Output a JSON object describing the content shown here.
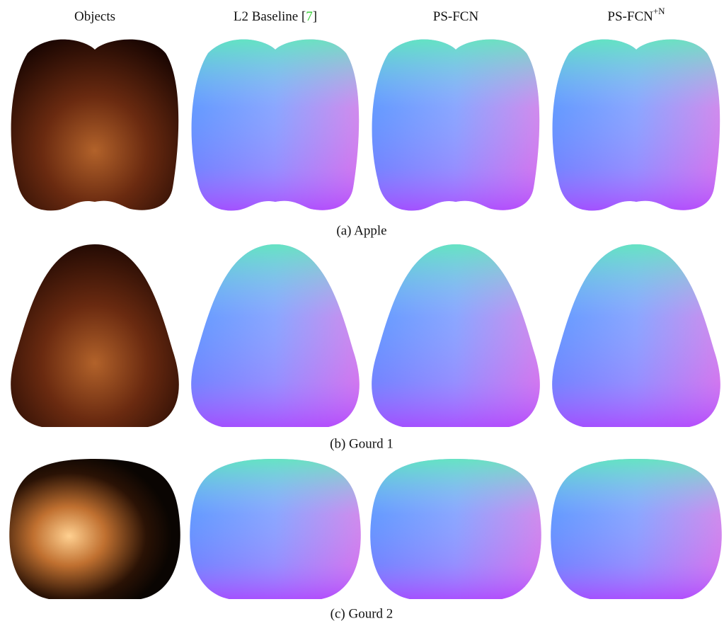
{
  "figure": {
    "headers": [
      {
        "text": "Objects"
      },
      {
        "text": "L2 Baseline [",
        "citation": "7",
        "after": "]"
      },
      {
        "text": "PS-FCN"
      },
      {
        "text": "PS-FCN",
        "superscript": "+N"
      }
    ],
    "rows": [
      {
        "caption": "(a) Apple"
      },
      {
        "caption": "(b) Gourd 1"
      },
      {
        "caption": "(c) Gourd 2"
      }
    ]
  }
}
